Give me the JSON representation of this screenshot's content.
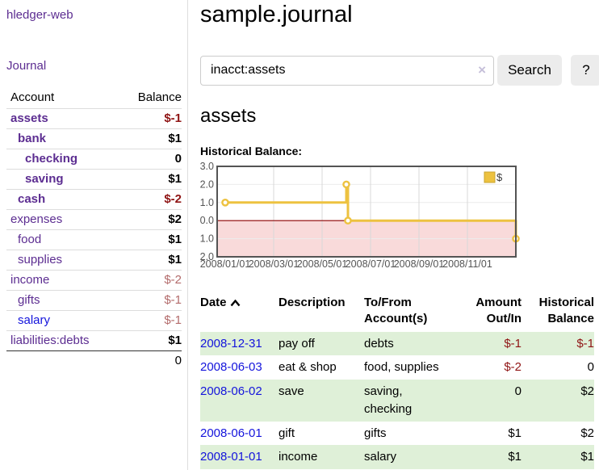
{
  "app": {
    "title": "hledger-web"
  },
  "nav": {
    "journal": "Journal"
  },
  "sidebar": {
    "header": {
      "account": "Account",
      "balance": "Balance"
    },
    "accounts": [
      {
        "name": "assets",
        "balance": "$-1",
        "depth": 1,
        "name_style": "bold",
        "bal_style": "neg"
      },
      {
        "name": "bank",
        "balance": "$1",
        "depth": 2,
        "name_style": "bold",
        "bal_style": "pos"
      },
      {
        "name": "checking",
        "balance": "0",
        "depth": 3,
        "name_style": "bold",
        "bal_style": "pos"
      },
      {
        "name": "saving",
        "balance": "$1",
        "depth": 3,
        "name_style": "bold",
        "bal_style": "pos"
      },
      {
        "name": "cash",
        "balance": "$-2",
        "depth": 2,
        "name_style": "bold",
        "bal_style": "neg"
      },
      {
        "name": "expenses",
        "balance": "$2",
        "depth": 1,
        "name_style": "plain",
        "bal_style": "pos"
      },
      {
        "name": "food",
        "balance": "$1",
        "depth": 2,
        "name_style": "plain",
        "bal_style": "pos"
      },
      {
        "name": "supplies",
        "balance": "$1",
        "depth": 2,
        "name_style": "plain",
        "bal_style": "pos"
      },
      {
        "name": "income",
        "balance": "$-2",
        "depth": 1,
        "name_style": "plain",
        "bal_style": "neg-light"
      },
      {
        "name": "gifts",
        "balance": "$-1",
        "depth": 2,
        "name_style": "plain",
        "bal_style": "neg-light"
      },
      {
        "name": "salary",
        "balance": "$-1",
        "depth": 2,
        "name_style": "plain-blue",
        "bal_style": "neg-light"
      },
      {
        "name": "liabilities:debts",
        "balance": "$1",
        "depth": 1,
        "name_style": "plain",
        "bal_style": "pos"
      }
    ],
    "total": "0"
  },
  "header": {
    "title": "sample.journal"
  },
  "search": {
    "value": "inacct:assets",
    "clear_icon": "×",
    "button_label": "Search",
    "help_label": "?"
  },
  "account_page": {
    "heading": "assets",
    "chart_title": "Historical Balance:"
  },
  "chart_data": {
    "type": "line",
    "title": "Historical Balance:",
    "step": true,
    "series": [
      {
        "name": "$",
        "color": "#edc240",
        "points": [
          {
            "x": "2008-01-01",
            "y": 1
          },
          {
            "x": "2008-06-01",
            "y": 2
          },
          {
            "x": "2008-06-03",
            "y": 0
          },
          {
            "x": "2008-12-31",
            "y": -1
          }
        ]
      }
    ],
    "x_ticks": [
      "2008/01/01",
      "2008/03/01",
      "2008/05/01",
      "2008/07/01",
      "2008/09/01",
      "2008/11/01"
    ],
    "y_ticks": [
      "3.0",
      "2.0",
      "1.0",
      "0.0",
      "-1.0",
      "-2.0"
    ],
    "ylim": [
      -2,
      3
    ],
    "x_range_months": [
      0,
      12
    ],
    "grid": true,
    "legend_position": "top-right",
    "colors": {
      "series": "#edc240",
      "marker_fill": "#ffffff",
      "negative_region": "#f9dada",
      "zero_line": "#8b0000",
      "plot_border": "#545454",
      "gridline": "#d8d8d8",
      "tick_text": "#545454"
    }
  },
  "transactions": {
    "headers": {
      "date": "Date",
      "description": "Description",
      "accounts": "To/From Account(s)",
      "amount": "Amount Out/In",
      "balance": "Historical Balance"
    },
    "rows": [
      {
        "date": "2008-12-31",
        "description": "pay off",
        "accounts": "debts",
        "amount": "$-1",
        "amount_neg": true,
        "balance": "$-1",
        "balance_neg": true,
        "shaded": true
      },
      {
        "date": "2008-06-03",
        "description": "eat & shop",
        "accounts": "food, supplies",
        "amount": "$-2",
        "amount_neg": true,
        "balance": "0",
        "balance_neg": false,
        "shaded": false
      },
      {
        "date": "2008-06-02",
        "description": "save",
        "accounts": "saving, checking",
        "amount": "0",
        "amount_neg": false,
        "balance": "$2",
        "balance_neg": false,
        "shaded": true
      },
      {
        "date": "2008-06-01",
        "description": "gift",
        "accounts": "gifts",
        "amount": "$1",
        "amount_neg": false,
        "balance": "$2",
        "balance_neg": false,
        "shaded": false
      },
      {
        "date": "2008-01-01",
        "description": "income",
        "accounts": "salary",
        "amount": "$1",
        "amount_neg": false,
        "balance": "$1",
        "balance_neg": false,
        "shaded": true
      }
    ]
  }
}
